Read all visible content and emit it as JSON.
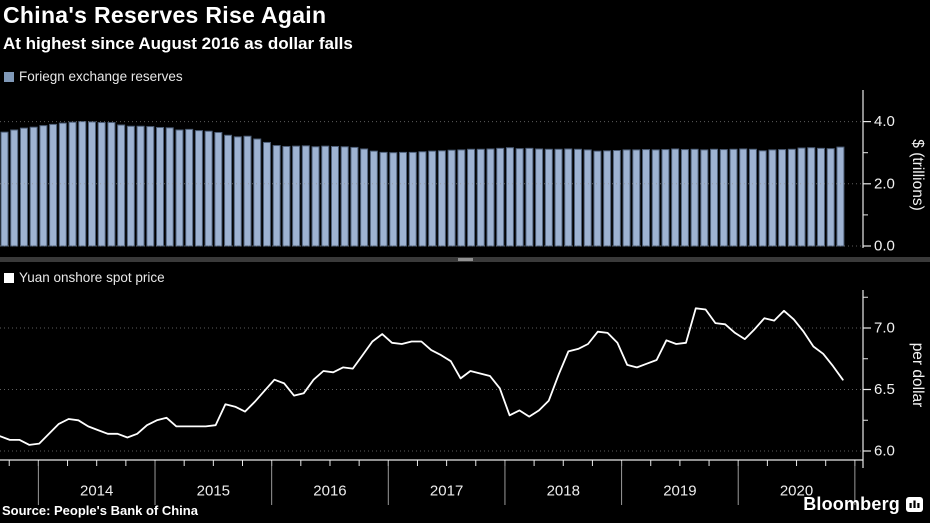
{
  "header": {
    "title": "China's Reserves Rise Again",
    "subtitle": "At highest since August 2016 as dollar falls"
  },
  "footer": {
    "source": "Source: People's Bank of China",
    "brand": "Bloomberg",
    "brand_icon": "bloomberg-terminal-icon"
  },
  "colors": {
    "background": "#000000",
    "title_text": "#ffffff",
    "bar_fill": "#9eb3d2",
    "bar_edge": "#4e5f78",
    "line": "#ffffff",
    "grid": "#8f8f8f",
    "axis": "#e8e8e8",
    "tick_text": "#f2f2f2",
    "year_text": "#ececec",
    "year_divider": "#9a9a9a",
    "separator": "#3a3a3a",
    "separator_handle": "#919191",
    "legend_reserves_swatch": "#8099b8",
    "legend_yuan_swatch": "#ffffff"
  },
  "chart_data": [
    {
      "type": "bar",
      "title": "Foriegn exchange reserves",
      "ylabel": "$ (trillions)",
      "legend_position": "top-left",
      "grid": "dotted-horizontal",
      "x_monthly_start": "2013-09",
      "x_monthly_end": "2020-11",
      "ylim": [
        0,
        5
      ],
      "y_ticks": [
        0.0,
        2.0,
        4.0
      ],
      "y_minor_ticks": [
        1.0,
        3.0
      ],
      "values": [
        3.66,
        3.73,
        3.79,
        3.82,
        3.87,
        3.91,
        3.95,
        3.98,
        4.0,
        3.99,
        3.97,
        3.97,
        3.89,
        3.85,
        3.85,
        3.84,
        3.81,
        3.8,
        3.73,
        3.75,
        3.71,
        3.69,
        3.65,
        3.56,
        3.51,
        3.53,
        3.44,
        3.33,
        3.23,
        3.2,
        3.21,
        3.22,
        3.19,
        3.21,
        3.2,
        3.19,
        3.17,
        3.12,
        3.05,
        3.01,
        3.0,
        3.01,
        3.01,
        3.03,
        3.05,
        3.06,
        3.08,
        3.09,
        3.11,
        3.11,
        3.12,
        3.14,
        3.16,
        3.13,
        3.14,
        3.12,
        3.11,
        3.11,
        3.12,
        3.11,
        3.09,
        3.05,
        3.06,
        3.07,
        3.09,
        3.09,
        3.1,
        3.09,
        3.1,
        3.12,
        3.1,
        3.11,
        3.09,
        3.11,
        3.1,
        3.11,
        3.12,
        3.11,
        3.06,
        3.09,
        3.1,
        3.11,
        3.15,
        3.16,
        3.14,
        3.13,
        3.18
      ]
    },
    {
      "type": "line",
      "title": "Yuan onshore spot price",
      "ylabel": "per dollar",
      "legend_position": "top-left",
      "grid": "dotted-horizontal",
      "x_monthly_start": "2013-09",
      "x_monthly_end": "2020-11",
      "ylim": [
        5.93,
        7.3
      ],
      "y_ticks": [
        6.0,
        6.5,
        7.0
      ],
      "y_minor_ticks": [
        6.25,
        6.75,
        7.25
      ],
      "values": [
        6.12,
        6.09,
        6.09,
        6.05,
        6.06,
        6.14,
        6.22,
        6.26,
        6.25,
        6.2,
        6.17,
        6.14,
        6.14,
        6.11,
        6.14,
        6.21,
        6.25,
        6.27,
        6.2,
        6.2,
        6.2,
        6.2,
        6.21,
        6.38,
        6.36,
        6.32,
        6.4,
        6.49,
        6.58,
        6.55,
        6.45,
        6.47,
        6.58,
        6.65,
        6.64,
        6.68,
        6.67,
        6.78,
        6.89,
        6.95,
        6.88,
        6.87,
        6.89,
        6.89,
        6.82,
        6.78,
        6.73,
        6.59,
        6.65,
        6.63,
        6.61,
        6.51,
        6.29,
        6.33,
        6.28,
        6.33,
        6.41,
        6.62,
        6.81,
        6.83,
        6.87,
        6.97,
        6.96,
        6.88,
        6.7,
        6.68,
        6.71,
        6.74,
        6.9,
        6.87,
        6.88,
        7.16,
        7.15,
        7.04,
        7.03,
        6.96,
        6.91,
        6.99,
        7.08,
        7.06,
        7.14,
        7.07,
        6.97,
        6.85,
        6.79,
        6.69,
        6.58
      ]
    }
  ],
  "x_axis": {
    "year_labels": [
      "2014",
      "2015",
      "2016",
      "2017",
      "2018",
      "2019",
      "2020"
    ],
    "tick_interval": "quarterly"
  }
}
